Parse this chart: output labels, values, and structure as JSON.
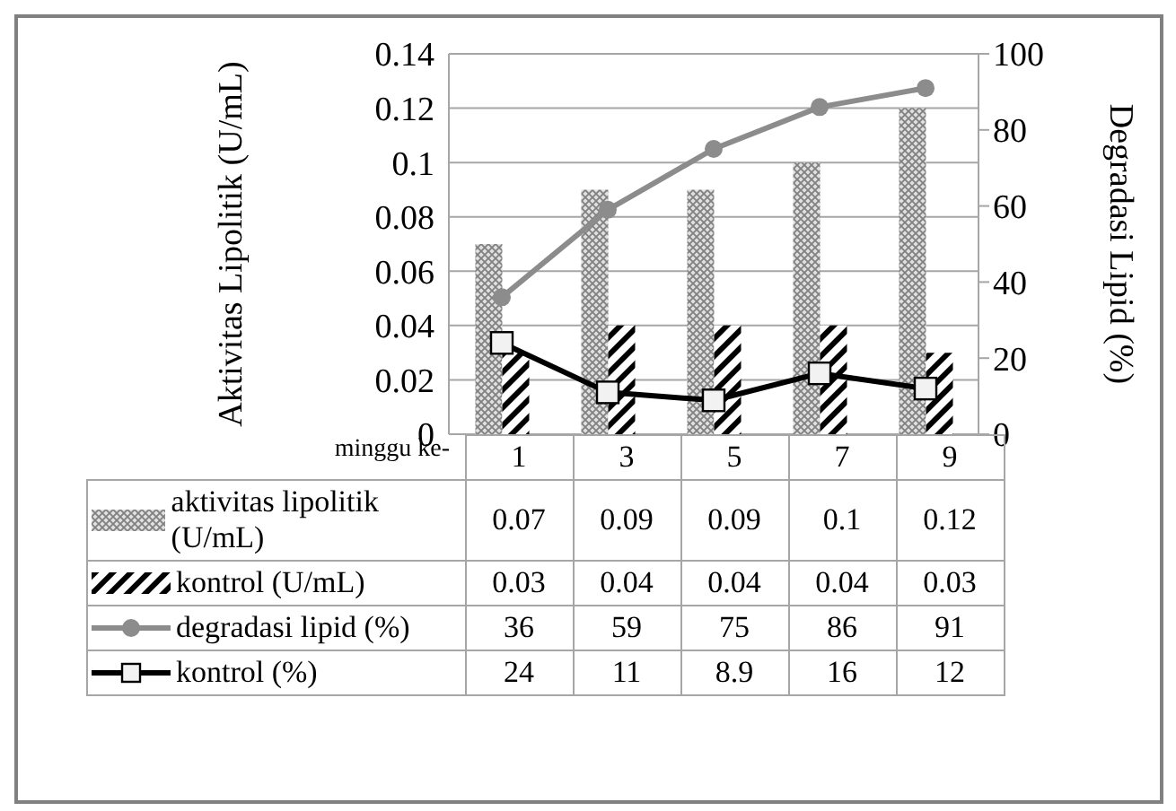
{
  "chart_data": {
    "type": "bar",
    "xlabel": "minggu ke-",
    "ylabel": "Aktivitas Lipolitik (U/mL)",
    "y2label": "Degradasi Lipid (%)",
    "categories": [
      "1",
      "3",
      "5",
      "7",
      "9"
    ],
    "series": [
      {
        "name": "aktivitas lipolitik (U/mL)",
        "color": "#808080",
        "values": [
          0.07,
          0.09,
          0.09,
          0.1,
          0.12
        ]
      },
      {
        "name": "kontrol (U/mL)",
        "color": "#000000",
        "values": [
          0.03,
          0.04,
          0.04,
          0.04,
          0.03
        ]
      },
      {
        "name": "degradasi lipid (%)",
        "type": "line",
        "axis": "y2",
        "marker": "circle",
        "color": "#8c8c8c",
        "values": [
          36,
          59,
          75,
          86,
          91
        ]
      },
      {
        "name": "kontrol (%)",
        "type": "line",
        "axis": "y2",
        "marker": "square",
        "color": "#000000",
        "values": [
          24,
          11,
          8.9,
          16,
          12
        ]
      }
    ],
    "ylim": [
      0,
      0.14
    ],
    "yticks": [
      0,
      0.02,
      0.04,
      0.06,
      0.08,
      0.1,
      0.12,
      0.14
    ],
    "y2lim": [
      0,
      100
    ],
    "y2ticks": [
      0,
      20,
      40,
      60,
      80,
      100
    ],
    "grid": "y",
    "legend": "bottom",
    "data_labels": true
  }
}
